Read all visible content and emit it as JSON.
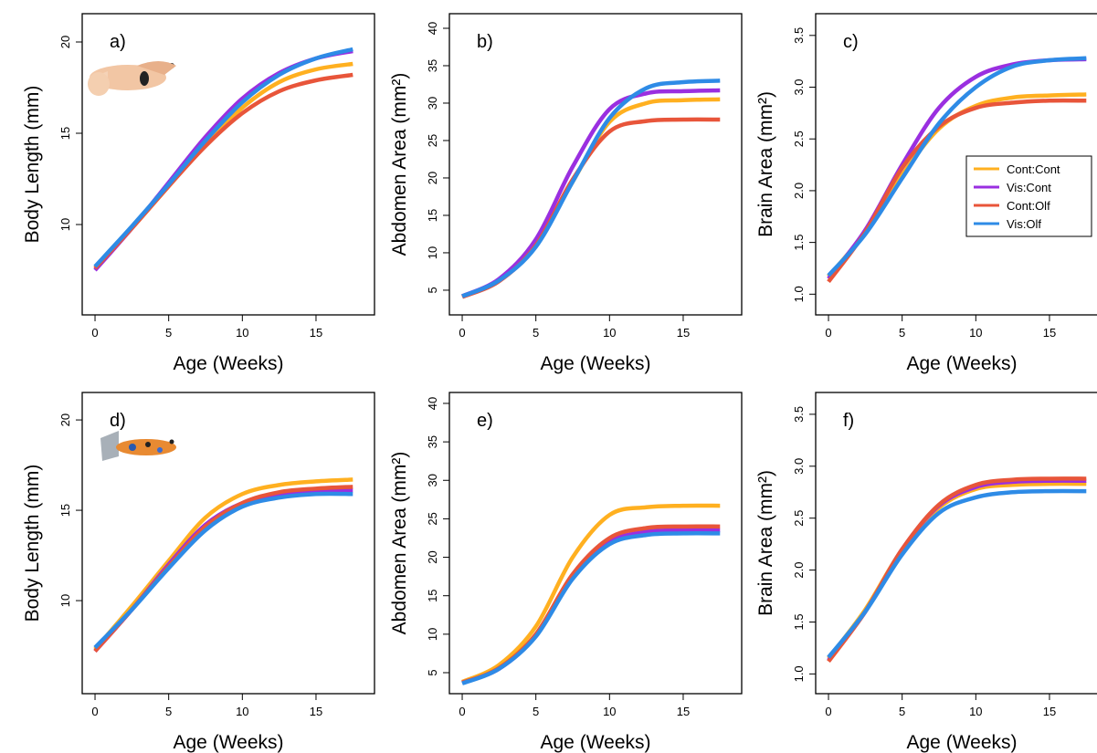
{
  "chart_data": [
    {
      "type": "line",
      "title": "a)",
      "xlabel": "Age (Weeks)",
      "ylabel": "Body Length (mm)",
      "x": [
        0,
        2.5,
        5,
        7.5,
        10,
        12.5,
        15,
        17.5
      ],
      "series": [
        {
          "name": "Cont:Cont",
          "color": "#ffb020",
          "values": [
            7.6,
            9.8,
            12.1,
            14.4,
            16.4,
            17.8,
            18.5,
            18.8
          ]
        },
        {
          "name": "Vis:Cont",
          "color": "#9a2fe0",
          "values": [
            7.5,
            9.8,
            12.3,
            14.8,
            16.9,
            18.3,
            19.1,
            19.5
          ]
        },
        {
          "name": "Cont:Olf",
          "color": "#e8553a",
          "values": [
            7.6,
            9.8,
            12.1,
            14.3,
            16.1,
            17.3,
            17.9,
            18.2
          ]
        },
        {
          "name": "Vis:Olf",
          "color": "#2e8be6",
          "values": [
            7.7,
            9.9,
            12.2,
            14.6,
            16.7,
            18.2,
            19.1,
            19.6
          ]
        }
      ],
      "xlim": [
        -0.87,
        18.97
      ],
      "xticks": [
        0,
        5,
        10,
        15
      ],
      "ylim": [
        5.05,
        21.55
      ],
      "yticks": [
        10,
        15,
        20
      ]
    },
    {
      "type": "line",
      "title": "b)",
      "xlabel": "Age (Weeks)",
      "ylabel": "Abdomen Area (mm²)",
      "x": [
        0,
        2.5,
        5,
        7.5,
        10,
        12.5,
        15,
        17.5
      ],
      "series": [
        {
          "name": "Cont:Cont",
          "color": "#ffb020",
          "values": [
            4.2,
            6.3,
            11,
            19.5,
            27.5,
            30,
            30.4,
            30.5
          ]
        },
        {
          "name": "Vis:Cont",
          "color": "#9a2fe0",
          "values": [
            4.2,
            6.5,
            11.8,
            21.5,
            29.2,
            31.3,
            31.6,
            31.7
          ]
        },
        {
          "name": "Cont:Olf",
          "color": "#e8553a",
          "values": [
            4.1,
            6.2,
            11,
            19.8,
            26.2,
            27.6,
            27.8,
            27.8
          ]
        },
        {
          "name": "Vis:Olf",
          "color": "#2e8be6",
          "values": [
            4.2,
            6.3,
            10.8,
            19.5,
            28,
            32,
            32.8,
            33
          ]
        }
      ],
      "xlim": [
        -0.87,
        18.97
      ],
      "xticks": [
        0,
        5,
        10,
        15
      ],
      "ylim": [
        1.7,
        41.95
      ],
      "yticks": [
        5,
        10,
        15,
        20,
        25,
        30,
        35,
        40
      ]
    },
    {
      "type": "line",
      "title": "c)",
      "xlabel": "Age (Weeks)",
      "ylabel": "Brain Area (mm²)",
      "x": [
        0,
        2.5,
        5,
        7.5,
        10,
        12.5,
        15,
        17.5
      ],
      "series": [
        {
          "name": "Cont:Cont",
          "color": "#ffb020",
          "values": [
            1.17,
            1.6,
            2.15,
            2.6,
            2.82,
            2.9,
            2.92,
            2.93
          ]
        },
        {
          "name": "Vis:Cont",
          "color": "#9a2fe0",
          "values": [
            1.15,
            1.62,
            2.25,
            2.8,
            3.1,
            3.22,
            3.26,
            3.27
          ]
        },
        {
          "name": "Cont:Olf",
          "color": "#e8553a",
          "values": [
            1.12,
            1.6,
            2.22,
            2.62,
            2.8,
            2.85,
            2.87,
            2.87
          ]
        },
        {
          "name": "Vis:Olf",
          "color": "#2e8be6",
          "values": [
            1.18,
            1.58,
            2.12,
            2.65,
            3.0,
            3.2,
            3.26,
            3.28
          ]
        }
      ],
      "xlim": [
        -0.87,
        18.97
      ],
      "xticks": [
        0,
        5,
        10,
        15
      ],
      "ylim": [
        0.8,
        3.71
      ],
      "yticks": [
        {
          "value": 1,
          "label": "1.0"
        },
        1.5,
        {
          "value": 2,
          "label": "2.0"
        },
        2.5,
        {
          "value": 3,
          "label": "3.0"
        },
        3.5
      ],
      "legend": "right"
    },
    {
      "type": "line",
      "title": "d)",
      "xlabel": "Age (Weeks)",
      "ylabel": "Body Length (mm)",
      "x": [
        0,
        2.5,
        5,
        7.5,
        10,
        12.5,
        15,
        17.5
      ],
      "series": [
        {
          "name": "Cont:Cont",
          "color": "#ffb020",
          "values": [
            7.3,
            9.7,
            12.2,
            14.6,
            15.9,
            16.4,
            16.6,
            16.7
          ]
        },
        {
          "name": "Vis:Cont",
          "color": "#9a2fe0",
          "values": [
            7.2,
            9.5,
            12.0,
            14.2,
            15.4,
            15.9,
            16.1,
            16.1
          ]
        },
        {
          "name": "Cont:Olf",
          "color": "#e8553a",
          "values": [
            7.2,
            9.5,
            11.9,
            14.1,
            15.4,
            16.0,
            16.2,
            16.3
          ]
        },
        {
          "name": "Vis:Olf",
          "color": "#2e8be6",
          "values": [
            7.4,
            9.5,
            11.8,
            13.9,
            15.2,
            15.7,
            15.9,
            15.9
          ]
        }
      ],
      "xlim": [
        -0.87,
        18.97
      ],
      "xticks": [
        0,
        5,
        10,
        15
      ],
      "ylim": [
        4.85,
        21.52
      ],
      "yticks": [
        10,
        15,
        20
      ]
    },
    {
      "type": "line",
      "title": "e)",
      "xlabel": "Age (Weeks)",
      "ylabel": "Abdomen Area (mm²)",
      "x": [
        0,
        2.5,
        5,
        7.5,
        10,
        12.5,
        15,
        17.5
      ],
      "series": [
        {
          "name": "Cont:Cont",
          "color": "#ffb020",
          "values": [
            3.8,
            6,
            11,
            20,
            25.5,
            26.5,
            26.7,
            26.7
          ]
        },
        {
          "name": "Vis:Cont",
          "color": "#9a2fe0",
          "values": [
            3.7,
            5.5,
            9.8,
            17.5,
            22,
            23.3,
            23.5,
            23.5
          ]
        },
        {
          "name": "Cont:Olf",
          "color": "#e8553a",
          "values": [
            3.7,
            5.6,
            10,
            17.8,
            22.5,
            23.8,
            24,
            24
          ]
        },
        {
          "name": "Vis:Olf",
          "color": "#2e8be6",
          "values": [
            3.6,
            5.5,
            9.7,
            17.2,
            21.7,
            22.9,
            23.1,
            23.1
          ]
        }
      ],
      "xlim": [
        -0.87,
        18.97
      ],
      "xticks": [
        0,
        5,
        10,
        15
      ],
      "ylim": [
        2.27,
        41.42
      ],
      "yticks": [
        5,
        10,
        15,
        20,
        25,
        30,
        35,
        40
      ]
    },
    {
      "type": "line",
      "title": "f)",
      "xlabel": "Age (Weeks)",
      "ylabel": "Brain Area (mm²)",
      "x": [
        0,
        2.5,
        5,
        7.5,
        10,
        12.5,
        15,
        17.5
      ],
      "series": [
        {
          "name": "Cont:Cont",
          "color": "#ffb020",
          "values": [
            1.15,
            1.62,
            2.2,
            2.6,
            2.78,
            2.82,
            2.83,
            2.83
          ]
        },
        {
          "name": "Vis:Cont",
          "color": "#9a2fe0",
          "values": [
            1.13,
            1.6,
            2.2,
            2.62,
            2.8,
            2.85,
            2.86,
            2.86
          ]
        },
        {
          "name": "Cont:Olf",
          "color": "#e8553a",
          "values": [
            1.12,
            1.6,
            2.2,
            2.63,
            2.82,
            2.87,
            2.88,
            2.88
          ]
        },
        {
          "name": "Vis:Olf",
          "color": "#2e8be6",
          "values": [
            1.16,
            1.6,
            2.15,
            2.55,
            2.7,
            2.75,
            2.76,
            2.76
          ]
        }
      ],
      "xlim": [
        -0.87,
        18.97
      ],
      "xticks": [
        0,
        5,
        10,
        15
      ],
      "ylim": [
        0.81,
        3.71
      ],
      "yticks": [
        {
          "value": 1,
          "label": "1.0"
        },
        1.5,
        {
          "value": 2,
          "label": "2.0"
        },
        2.5,
        {
          "value": 3,
          "label": "3.0"
        },
        3.5
      ]
    }
  ]
}
